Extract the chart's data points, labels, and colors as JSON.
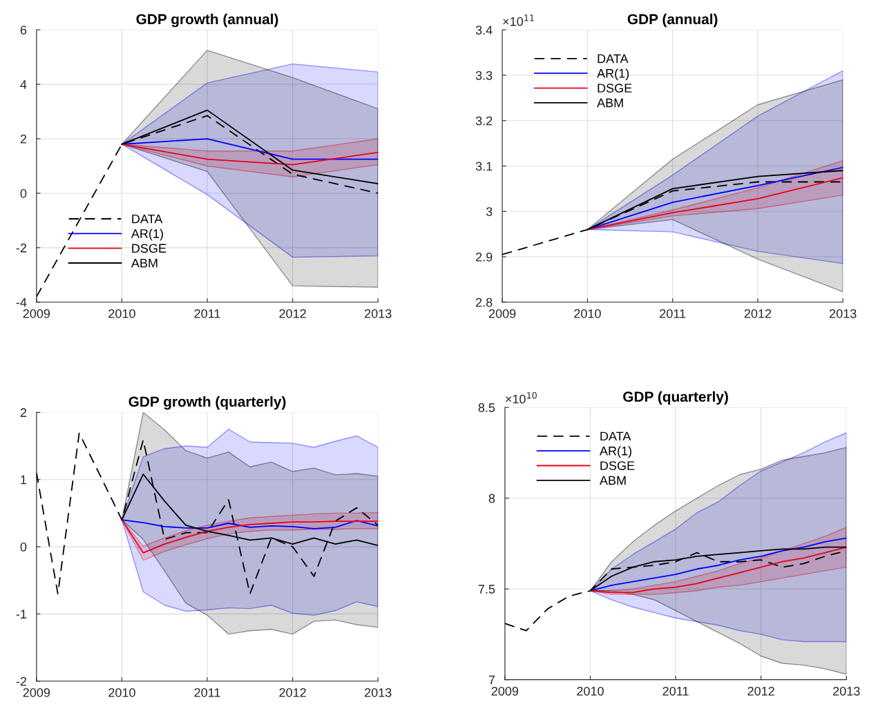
{
  "chart_data": [
    {
      "type": "line",
      "title": "GDP growth (annual)",
      "xlim": [
        2009,
        2013
      ],
      "xticks": [
        2009,
        2010,
        2011,
        2012,
        2013
      ],
      "ylim": [
        -4,
        6
      ],
      "yticks": [
        -4,
        -2,
        0,
        2,
        4,
        6
      ],
      "grid": true,
      "legend": "bottom left",
      "marker": "none",
      "series": [
        {
          "name": "DATA",
          "color": "#000000",
          "line_style": "dashed",
          "x": [
            2009,
            2010,
            2011,
            2012,
            2013
          ],
          "values": [
            -3.8,
            1.8,
            2.85,
            0.7,
            0.0
          ]
        },
        {
          "name": "AR(1)",
          "color": "#0000ff",
          "x": [
            2010,
            2011,
            2012,
            2013
          ],
          "values": [
            1.8,
            2.0,
            1.25,
            1.25
          ],
          "lower": [
            1.8,
            -0.05,
            -2.35,
            -2.3
          ],
          "upper": [
            1.8,
            4.05,
            4.75,
            4.45
          ]
        },
        {
          "name": "DSGE",
          "color": "#e8001c",
          "x": [
            2010,
            2011,
            2012,
            2013
          ],
          "values": [
            1.8,
            1.25,
            1.05,
            1.5
          ],
          "lower": [
            1.8,
            1.0,
            0.6,
            1.05
          ],
          "upper": [
            1.8,
            1.55,
            1.55,
            2.0
          ]
        },
        {
          "name": "ABM",
          "color": "#000000",
          "x": [
            2010,
            2011,
            2012,
            2013
          ],
          "values": [
            1.8,
            3.05,
            0.85,
            0.35
          ],
          "lower": [
            1.8,
            0.8,
            -3.4,
            -3.45
          ],
          "upper": [
            1.8,
            5.25,
            4.25,
            3.1
          ]
        }
      ]
    },
    {
      "type": "line",
      "title": "GDP (annual)",
      "annotations": [
        "×10$^{11}$"
      ],
      "xlim": [
        2009,
        2013
      ],
      "xticks": [
        2009,
        2010,
        2011,
        2012,
        2013
      ],
      "ylim": [
        2.8,
        3.4
      ],
      "yticks": [
        2.8,
        2.9,
        3,
        3.1,
        3.2,
        3.3,
        3.4
      ],
      "grid": true,
      "legend": "top left",
      "marker": "none",
      "series": [
        {
          "name": "DATA",
          "color": "#000000",
          "line_style": "dashed",
          "x": [
            2009,
            2010,
            2011,
            2012,
            2013
          ],
          "values": [
            2.905,
            2.96,
            3.045,
            3.065,
            3.065
          ]
        },
        {
          "name": "AR(1)",
          "color": "#0000ff",
          "x": [
            2010,
            2011,
            2012,
            2013
          ],
          "values": [
            2.96,
            3.02,
            3.057,
            3.097
          ],
          "lower": [
            2.96,
            2.955,
            2.912,
            2.885
          ],
          "upper": [
            2.96,
            3.08,
            3.21,
            3.31
          ]
        },
        {
          "name": "DSGE",
          "color": "#e8001c",
          "x": [
            2010,
            2011,
            2012,
            2013
          ],
          "values": [
            2.96,
            2.997,
            3.028,
            3.074
          ],
          "lower": [
            2.96,
            2.99,
            3.006,
            3.036
          ],
          "upper": [
            2.96,
            3.003,
            3.052,
            3.112
          ]
        },
        {
          "name": "ABM",
          "color": "#000000",
          "x": [
            2010,
            2011,
            2012,
            2013
          ],
          "values": [
            2.96,
            3.05,
            3.077,
            3.09
          ],
          "lower": [
            2.96,
            2.982,
            2.895,
            2.823
          ],
          "upper": [
            2.96,
            3.115,
            3.235,
            3.29
          ]
        }
      ]
    },
    {
      "type": "line",
      "title": "GDP growth (quarterly)",
      "xlim": [
        2009,
        2013
      ],
      "xticks": [
        2009,
        2010,
        2011,
        2012,
        2013
      ],
      "ylim": [
        -2,
        2
      ],
      "yticks": [
        -2,
        -1,
        0,
        1,
        2
      ],
      "grid": true,
      "marker": "none",
      "series": [
        {
          "color": "#000000",
          "line_style": "dashed",
          "x": [
            2009,
            2009.25,
            2009.5,
            2009.75,
            2010,
            2010.25,
            2010.5,
            2010.75,
            2011,
            2011.25,
            2011.5,
            2011.75,
            2012,
            2012.25,
            2012.5,
            2012.75,
            2013
          ],
          "values": [
            1.1,
            -0.7,
            1.69,
            1.05,
            0.4,
            1.59,
            0.11,
            0.21,
            0.21,
            0.7,
            -0.7,
            0.13,
            0.0,
            -0.44,
            0.38,
            0.58,
            0.32
          ]
        },
        {
          "color": "#0000ff",
          "x": [
            2010,
            2010.25,
            2010.5,
            2010.75,
            2011,
            2011.25,
            2011.5,
            2011.75,
            2012,
            2012.25,
            2012.5,
            2012.75,
            2013
          ],
          "values": [
            0.4,
            0.36,
            0.3,
            0.28,
            0.28,
            0.35,
            0.29,
            0.31,
            0.3,
            0.27,
            0.29,
            0.39,
            0.31
          ],
          "lower": [
            0.4,
            -0.67,
            -0.87,
            -0.96,
            -0.94,
            -0.91,
            -0.92,
            -0.87,
            -0.99,
            -1.02,
            -0.95,
            -0.82,
            -0.89
          ],
          "upper": [
            0.4,
            1.34,
            1.46,
            1.5,
            1.48,
            1.75,
            1.56,
            1.55,
            1.54,
            1.48,
            1.57,
            1.65,
            1.48
          ]
        },
        {
          "color": "#e8001c",
          "x": [
            2010,
            2010.25,
            2010.5,
            2010.75,
            2011,
            2011.25,
            2011.5,
            2011.75,
            2012,
            2012.25,
            2012.5,
            2012.75,
            2013
          ],
          "values": [
            0.4,
            -0.09,
            0.04,
            0.14,
            0.23,
            0.29,
            0.33,
            0.35,
            0.37,
            0.37,
            0.38,
            0.38,
            0.38
          ],
          "lower": [
            0.4,
            -0.2,
            -0.07,
            0.03,
            0.12,
            0.19,
            0.23,
            0.25,
            0.25,
            0.26,
            0.26,
            0.27,
            0.27
          ],
          "upper": [
            0.4,
            0.01,
            0.13,
            0.24,
            0.32,
            0.38,
            0.43,
            0.45,
            0.47,
            0.49,
            0.5,
            0.5,
            0.51
          ]
        },
        {
          "color": "#000000",
          "x": [
            2010,
            2010.25,
            2010.5,
            2010.75,
            2011,
            2011.25,
            2011.5,
            2011.75,
            2012,
            2012.25,
            2012.5,
            2012.75,
            2013
          ],
          "values": [
            0.4,
            1.08,
            0.68,
            0.32,
            0.23,
            0.17,
            0.1,
            0.13,
            0.04,
            0.13,
            0.04,
            0.1,
            0.02
          ],
          "lower": [
            0.4,
            0.11,
            -0.36,
            -0.84,
            -1.02,
            -1.3,
            -1.25,
            -1.23,
            -1.3,
            -1.11,
            -1.09,
            -1.16,
            -1.2
          ],
          "upper": [
            0.4,
            2.0,
            1.74,
            1.43,
            1.32,
            1.41,
            1.19,
            1.26,
            1.12,
            1.17,
            1.07,
            1.09,
            1.05
          ]
        }
      ]
    },
    {
      "type": "line",
      "title": "GDP (quarterly)",
      "annotations": [
        "×10$^{10}$"
      ],
      "xlim": [
        2009,
        2013
      ],
      "xticks": [
        2009,
        2010,
        2011,
        2012,
        2013
      ],
      "ylim": [
        7,
        8.5
      ],
      "yticks": [
        7,
        7.5,
        8,
        8.5
      ],
      "grid": true,
      "legend": "top left",
      "marker": "none",
      "series": [
        {
          "name": "DATA",
          "color": "#000000",
          "line_style": "dashed",
          "x": [
            2009,
            2009.25,
            2009.5,
            2009.75,
            2010,
            2010.25,
            2010.5,
            2010.75,
            2011,
            2011.25,
            2011.5,
            2011.75,
            2012,
            2012.25,
            2012.5,
            2012.75,
            2013
          ],
          "values": [
            7.31,
            7.27,
            7.39,
            7.46,
            7.49,
            7.61,
            7.62,
            7.63,
            7.65,
            7.7,
            7.65,
            7.65,
            7.66,
            7.62,
            7.64,
            7.68,
            7.71
          ]
        },
        {
          "name": "AR(1)",
          "color": "#0000ff",
          "x": [
            2010,
            2010.25,
            2010.5,
            2010.75,
            2011,
            2011.25,
            2011.5,
            2011.75,
            2012,
            2012.25,
            2012.5,
            2012.75,
            2013
          ],
          "values": [
            7.49,
            7.52,
            7.54,
            7.56,
            7.58,
            7.61,
            7.63,
            7.66,
            7.68,
            7.71,
            7.73,
            7.76,
            7.78
          ],
          "lower": [
            7.49,
            7.44,
            7.4,
            7.37,
            7.34,
            7.32,
            7.3,
            7.27,
            7.25,
            7.22,
            7.21,
            7.21,
            7.21
          ],
          "upper": [
            7.49,
            7.61,
            7.69,
            7.76,
            7.83,
            7.92,
            7.98,
            8.07,
            8.15,
            8.2,
            8.25,
            8.31,
            8.36
          ]
        },
        {
          "name": "DSGE",
          "color": "#e8001c",
          "x": [
            2010,
            2010.25,
            2010.5,
            2010.75,
            2011,
            2011.25,
            2011.5,
            2011.75,
            2012,
            2012.25,
            2012.5,
            2012.75,
            2013
          ],
          "values": [
            7.49,
            7.48,
            7.48,
            7.5,
            7.51,
            7.53,
            7.56,
            7.59,
            7.62,
            7.65,
            7.67,
            7.7,
            7.73
          ],
          "lower": [
            7.49,
            7.47,
            7.47,
            7.47,
            7.48,
            7.49,
            7.51,
            7.52,
            7.54,
            7.56,
            7.58,
            7.6,
            7.62
          ],
          "upper": [
            7.49,
            7.49,
            7.5,
            7.52,
            7.54,
            7.57,
            7.6,
            7.64,
            7.67,
            7.71,
            7.75,
            7.79,
            7.84
          ]
        },
        {
          "name": "ABM",
          "color": "#000000",
          "x": [
            2010,
            2010.25,
            2010.5,
            2010.75,
            2011,
            2011.25,
            2011.5,
            2011.75,
            2012,
            2012.25,
            2012.5,
            2012.75,
            2013
          ],
          "values": [
            7.49,
            7.57,
            7.62,
            7.65,
            7.66,
            7.68,
            7.69,
            7.7,
            7.71,
            7.72,
            7.72,
            7.73,
            7.73
          ],
          "lower": [
            7.49,
            7.49,
            7.47,
            7.44,
            7.38,
            7.32,
            7.26,
            7.2,
            7.13,
            7.09,
            7.08,
            7.06,
            7.03
          ],
          "upper": [
            7.49,
            7.65,
            7.76,
            7.85,
            7.93,
            8.0,
            8.07,
            8.13,
            8.16,
            8.21,
            8.23,
            8.25,
            8.28
          ]
        }
      ]
    }
  ]
}
